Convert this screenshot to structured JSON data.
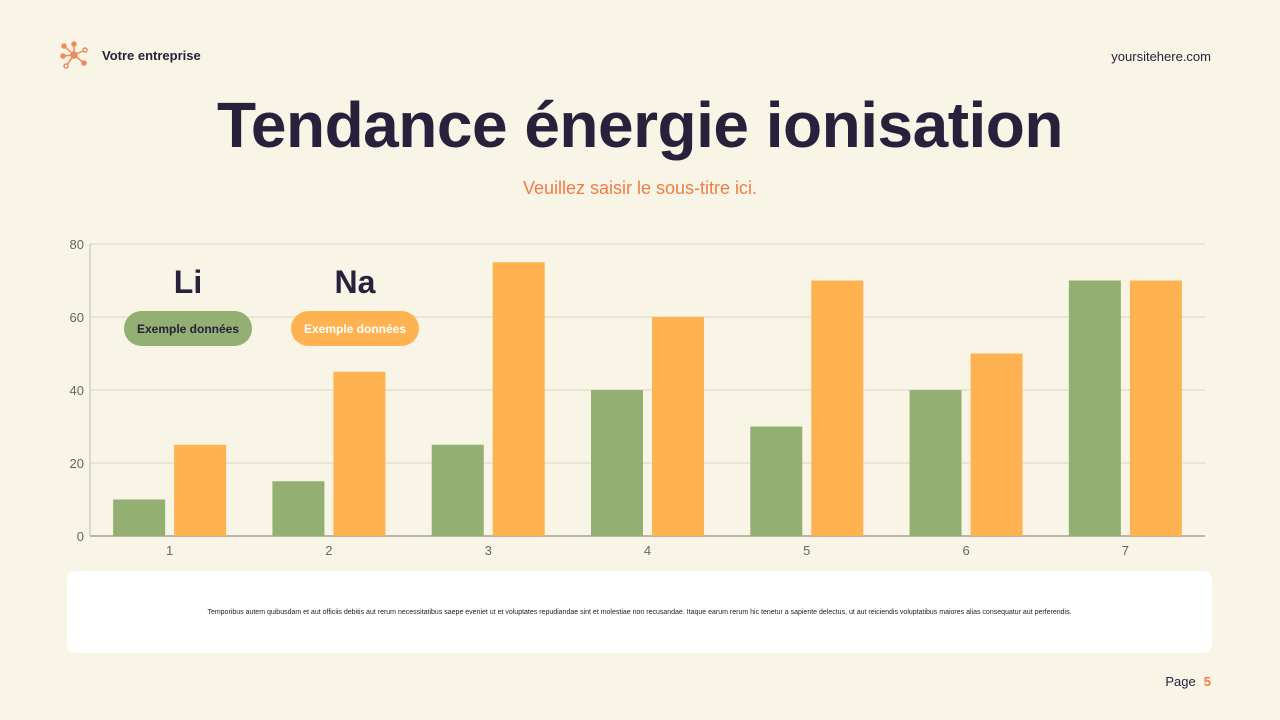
{
  "header": {
    "company": "Votre entreprise",
    "site": "yoursitehere.com",
    "logo_icon": "network-icon"
  },
  "title": "Tendance énergie ionisation",
  "subtitle": "Veuillez saisir le sous-titre ici.",
  "note": "Temporibus autem quibusdam et aut officiis debitis aut rerum necessitatibus saepe eveniet ut et voluptates repudiandae sint et molestiae non recusandae. Itaque earum rerum hic tenetur a sapiente delectus, ut aut reiciendis voluptatibus maiores alias consequatur aut perferendis.",
  "footer": {
    "page_label": "Page",
    "page_number": "5"
  },
  "chart_data": {
    "type": "bar",
    "categories": [
      "1",
      "2",
      "3",
      "4",
      "5",
      "6",
      "7"
    ],
    "ylim": [
      0,
      80
    ],
    "yticks": [
      0,
      20,
      40,
      60,
      80
    ],
    "grid": true,
    "legend_placement": "top-left",
    "series": [
      {
        "name": "Li",
        "badge": "Exemple données",
        "color": "#94af72",
        "values": [
          10,
          15,
          25,
          40,
          30,
          40,
          70
        ]
      },
      {
        "name": "Na",
        "badge": "Exemple données",
        "color": "#ffb350",
        "values": [
          25,
          45,
          75,
          60,
          70,
          50,
          70
        ]
      }
    ]
  }
}
